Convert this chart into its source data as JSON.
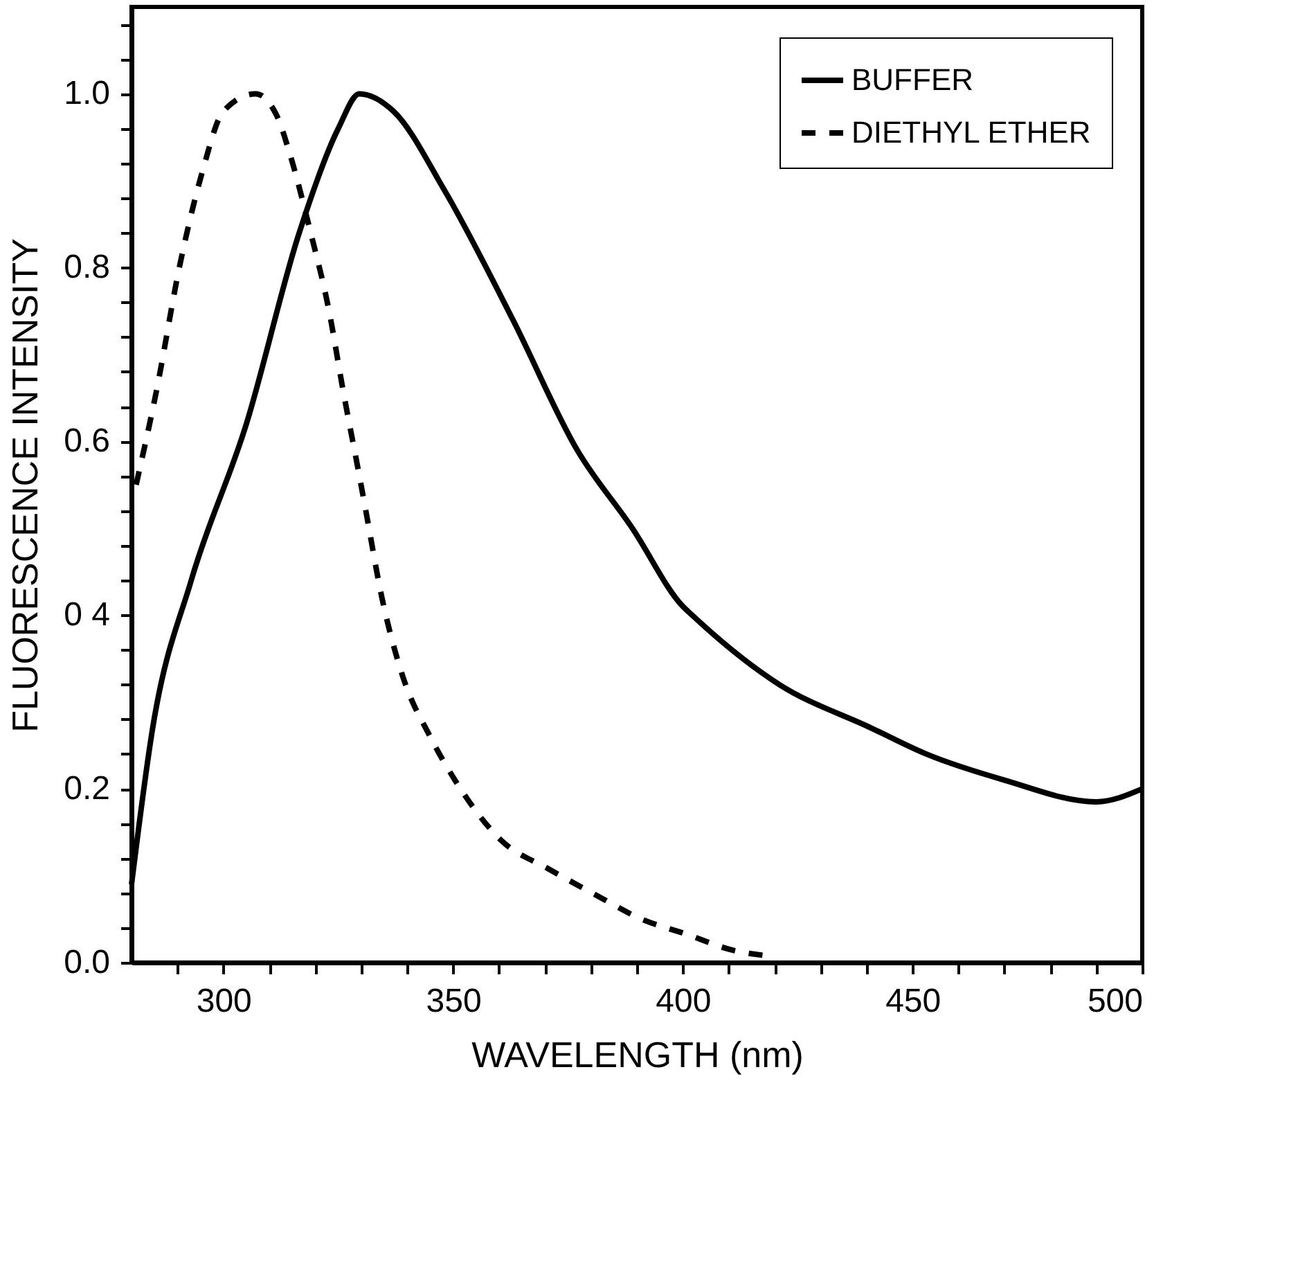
{
  "chart_data": {
    "type": "line",
    "xlabel": "WAVELENGTH (nm)",
    "ylabel": "FLUORESCENCE INTENSITY",
    "xlim": [
      280,
      500
    ],
    "ylim": [
      0,
      1.1
    ],
    "xticks": [
      {
        "value": 290,
        "label": null
      },
      300,
      {
        "value": 310,
        "label": null
      },
      {
        "value": 320,
        "label": null
      },
      {
        "value": 330,
        "label": null
      },
      {
        "value": 340,
        "label": null
      },
      350,
      {
        "value": 360,
        "label": null
      },
      {
        "value": 370,
        "label": null
      },
      {
        "value": 380,
        "label": null
      },
      {
        "value": 390,
        "label": null
      },
      400,
      {
        "value": 410,
        "label": null
      },
      {
        "value": 420,
        "label": null
      },
      {
        "value": 430,
        "label": null
      },
      {
        "value": 440,
        "label": null
      },
      450,
      {
        "value": 460,
        "label": null
      },
      {
        "value": 470,
        "label": null
      },
      {
        "value": 480,
        "label": null
      },
      {
        "value": 490,
        "label": null
      },
      500
    ],
    "yticks": [
      {
        "value": 0,
        "label": "0.0"
      },
      {
        "value": 0.04,
        "label": null
      },
      {
        "value": 0.08,
        "label": null
      },
      {
        "value": 0.12,
        "label": null
      },
      {
        "value": 0.16,
        "label": null
      },
      {
        "value": 0.2,
        "label": "0.2"
      },
      {
        "value": 0.24,
        "label": null
      },
      {
        "value": 0.28,
        "label": null
      },
      {
        "value": 0.32,
        "label": null
      },
      {
        "value": 0.36,
        "label": null
      },
      {
        "value": 0.4,
        "label": "0 4"
      },
      {
        "value": 0.44,
        "label": null
      },
      {
        "value": 0.48,
        "label": null
      },
      {
        "value": 0.52,
        "label": null
      },
      {
        "value": 0.56,
        "label": null
      },
      {
        "value": 0.6,
        "label": "0.6"
      },
      {
        "value": 0.64,
        "label": null
      },
      {
        "value": 0.68,
        "label": null
      },
      {
        "value": 0.72,
        "label": null
      },
      {
        "value": 0.76,
        "label": null
      },
      {
        "value": 0.8,
        "label": "0.8"
      },
      {
        "value": 0.84,
        "label": null
      },
      {
        "value": 0.88,
        "label": null
      },
      {
        "value": 0.92,
        "label": null
      },
      {
        "value": 0.96,
        "label": null
      },
      {
        "value": 1.0,
        "label": "1.0"
      },
      {
        "value": 1.04,
        "label": null
      },
      {
        "value": 1.08,
        "label": null
      }
    ],
    "grid": false,
    "legend": "top right",
    "marker": "none",
    "series": [
      {
        "name": "BUFFER",
        "color": "#000000",
        "line_style": "solid",
        "x": [
          280,
          284.6,
          293,
          305,
          316.5,
          325,
          329.6,
          337,
          348,
          363,
          377,
          389,
          400,
          402,
          421,
          441,
          453,
          470,
          490,
          500
        ],
        "values": [
          0.09,
          0.27,
          0.44,
          0.62,
          0.84,
          0.96,
          1.0,
          0.98,
          0.89,
          0.74,
          0.59,
          0.5,
          0.41,
          0.4,
          0.32,
          0.27,
          0.24,
          0.21,
          0.185,
          0.2
        ]
      },
      {
        "name": "DIETHYL ETHER",
        "color": "#000000",
        "line_style": "dashed",
        "x": [
          281,
          285.5,
          290.4,
          295.4,
          300,
          307,
          311.6,
          314.5,
          319,
          323,
          326,
          329.6,
          331,
          334.5,
          339,
          345,
          350.4,
          360.6,
          370.7,
          381,
          391,
          400.6,
          411,
          420
        ],
        "values": [
          0.55,
          0.66,
          0.8,
          0.91,
          0.98,
          1.0,
          0.975,
          0.93,
          0.84,
          0.75,
          0.66,
          0.56,
          0.52,
          0.42,
          0.33,
          0.26,
          0.21,
          0.14,
          0.108,
          0.078,
          0.05,
          0.033,
          0.014,
          0.007
        ]
      }
    ]
  }
}
